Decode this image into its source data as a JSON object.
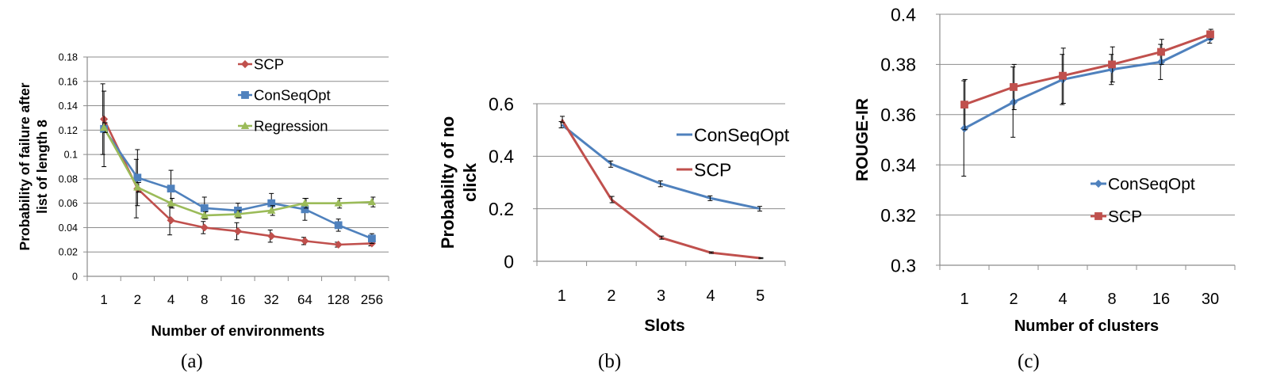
{
  "chart_data": [
    {
      "type": "line",
      "panel_label": "(a)",
      "categories": [
        "1",
        "2",
        "4",
        "8",
        "16",
        "32",
        "64",
        "128",
        "256"
      ],
      "xlabel": "Number of environments",
      "ylabel": "Probability of failure after list of length 8",
      "ylabel_lines": [
        "Probability of failure after",
        "list of length 8"
      ],
      "ylim": [
        0,
        0.18
      ],
      "yticks": [
        0,
        0.02,
        0.04,
        0.06,
        0.08,
        0.1,
        0.12,
        0.14,
        0.16,
        0.18
      ],
      "ytick_labels": [
        "0",
        "0.02",
        "0.04",
        "0.06",
        "0.08",
        "0.1",
        "0.12",
        "0.14",
        "0.16",
        "0.18"
      ],
      "grid": true,
      "legend_position": "top-right",
      "series": [
        {
          "name": "SCP",
          "color": "#c0504d",
          "marker": "diamond",
          "values": [
            0.129,
            0.072,
            0.046,
            0.04,
            0.037,
            0.033,
            0.029,
            0.026,
            0.027
          ],
          "errors": [
            0.029,
            0.024,
            0.012,
            0.005,
            0.007,
            0.005,
            0.003,
            0.002,
            0.002
          ]
        },
        {
          "name": "ConSeqOpt",
          "color": "#4f81bd",
          "marker": "square",
          "values": [
            0.121,
            0.081,
            0.072,
            0.056,
            0.054,
            0.06,
            0.055,
            0.042,
            0.031
          ],
          "errors": [
            0.031,
            0.023,
            0.015,
            0.009,
            0.006,
            0.008,
            0.009,
            0.005,
            0.004
          ]
        },
        {
          "name": "Regression",
          "color": "#9bbb59",
          "marker": "triangle",
          "values": [
            0.122,
            0.073,
            0.06,
            0.05,
            0.051,
            0.054,
            0.06,
            0.06,
            0.061
          ],
          "errors": [
            0.004,
            0.004,
            0.004,
            0.003,
            0.003,
            0.004,
            0.004,
            0.004,
            0.004
          ]
        }
      ]
    },
    {
      "type": "line",
      "panel_label": "(b)",
      "categories": [
        "1",
        "2",
        "3",
        "4",
        "5"
      ],
      "xlabel": "Slots",
      "ylabel": "Probabilty of no click",
      "ylabel_lines": [
        "Probabilty of no",
        "click"
      ],
      "ylim": [
        0,
        0.6
      ],
      "yticks": [
        0,
        0.2,
        0.4,
        0.6
      ],
      "ytick_labels": [
        "0",
        "0.2",
        "0.4",
        "0.6"
      ],
      "grid": true,
      "legend_position": "top-right",
      "series": [
        {
          "name": "ConSeqOpt",
          "color": "#4f81bd",
          "marker": "none",
          "values": [
            0.52,
            0.37,
            0.295,
            0.24,
            0.2
          ],
          "errors": [
            0.012,
            0.012,
            0.011,
            0.009,
            0.009
          ]
        },
        {
          "name": "SCP",
          "color": "#c0504d",
          "marker": "none",
          "values": [
            0.54,
            0.235,
            0.09,
            0.033,
            0.012
          ],
          "errors": [
            0.012,
            0.012,
            0.006,
            0.003,
            0.002
          ]
        }
      ]
    },
    {
      "type": "line",
      "panel_label": "(c)",
      "categories": [
        "1",
        "2",
        "4",
        "8",
        "16",
        "30"
      ],
      "xlabel": "Number of clusters",
      "ylabel": "ROUGE-IR",
      "ylabel_lines": [
        "ROUGE-IR"
      ],
      "ylim": [
        0.3,
        0.4
      ],
      "yticks": [
        0.3,
        0.32,
        0.34,
        0.36,
        0.38,
        0.4
      ],
      "ytick_labels": [
        "0.3",
        "0.32",
        "0.34",
        "0.36",
        "0.38",
        "0.4"
      ],
      "grid": true,
      "legend_position": "bottom-right",
      "series": [
        {
          "name": "ConSeqOpt",
          "color": "#4f81bd",
          "marker": "diamond",
          "values": [
            0.3545,
            0.365,
            0.374,
            0.378,
            0.381,
            0.3905
          ],
          "errors": [
            0.019,
            0.014,
            0.01,
            0.006,
            0.007,
            0.002
          ]
        },
        {
          "name": "SCP",
          "color": "#c0504d",
          "marker": "square",
          "values": [
            0.364,
            0.371,
            0.3755,
            0.38,
            0.385,
            0.392
          ],
          "errors": [
            0.01,
            0.009,
            0.011,
            0.007,
            0.005,
            0.002
          ]
        }
      ]
    }
  ]
}
